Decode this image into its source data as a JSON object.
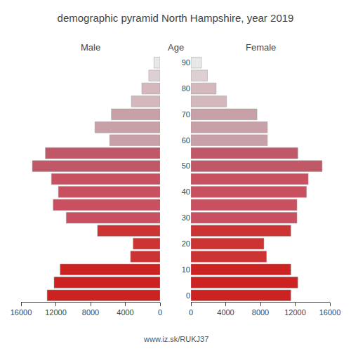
{
  "chart_data": {
    "type": "bar",
    "orientation": "horizontal",
    "title": "demographic pyramid North Hampshire, year 2019",
    "ylabel": "Age",
    "annotations": [
      "www.iz.sk/RUKJ37"
    ],
    "categories": [
      "0",
      null,
      "10",
      null,
      "20",
      null,
      "30",
      null,
      "40",
      null,
      "50",
      null,
      "60",
      null,
      "70",
      null,
      "80",
      null,
      "90"
    ],
    "series": [
      {
        "name": "Male",
        "colors": [
          "#cc2222",
          "#cc2222",
          "#cc2222",
          "#cc3333",
          "#cc3333",
          "#cc3333",
          "#c85060",
          "#c85060",
          "#c85060",
          "#c85060",
          "#c05868",
          "#c05868",
          "#c8a0a8",
          "#c8a0a8",
          "#c8a0a8",
          "#d4b8bc",
          "#d4b8bc",
          "#ddd0d2",
          "#e8e8e8"
        ],
        "values": [
          13000,
          12200,
          11500,
          3400,
          3100,
          7200,
          10800,
          12300,
          11700,
          12500,
          14700,
          13200,
          5800,
          7500,
          5600,
          3300,
          2100,
          1300,
          700
        ]
      },
      {
        "name": "Female",
        "colors": [
          "#cc2222",
          "#cc2222",
          "#cc2222",
          "#cc3333",
          "#cc3333",
          "#cc3333",
          "#c85060",
          "#c85060",
          "#c85060",
          "#c85060",
          "#c05868",
          "#c05868",
          "#c8a0a8",
          "#c8a0a8",
          "#c8a0a8",
          "#d4b8bc",
          "#d4b8bc",
          "#ddd0d2",
          "#e8e8e8"
        ],
        "values": [
          11500,
          12300,
          11500,
          8700,
          8400,
          11500,
          12200,
          12200,
          13300,
          13500,
          15100,
          12300,
          8800,
          8800,
          7600,
          4100,
          2900,
          1900,
          1200
        ]
      }
    ],
    "xlim": [
      0,
      16000
    ],
    "xticks": [
      0,
      4000,
      8000,
      12000,
      16000
    ],
    "grid": false
  }
}
